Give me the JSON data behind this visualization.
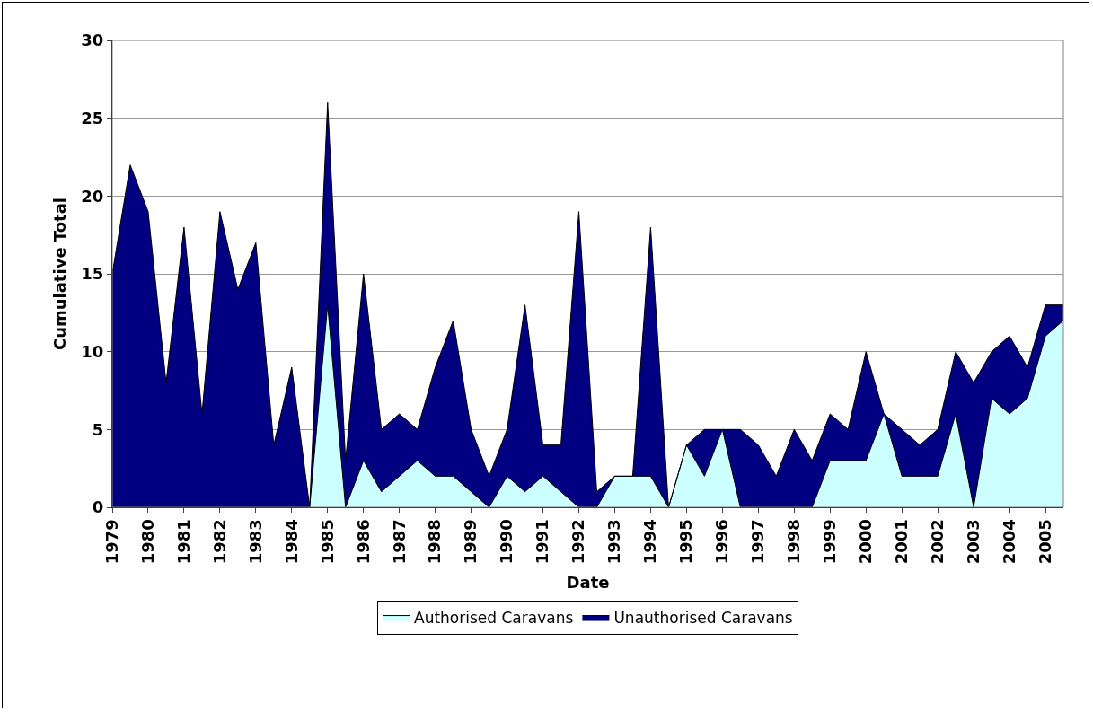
{
  "chart_data": {
    "type": "area",
    "stacked": true,
    "xlabel": "Date",
    "ylabel": "Cumulative Total",
    "categories": [
      "1979",
      null,
      "1980",
      null,
      "1981",
      null,
      "1982",
      null,
      "1983",
      null,
      "1984",
      null,
      "1985",
      null,
      "1986",
      null,
      "1987",
      null,
      "1988",
      null,
      "1989",
      null,
      "1990",
      null,
      "1991",
      null,
      "1992",
      null,
      "1993",
      null,
      "1994",
      null,
      "1995",
      null,
      "1996",
      null,
      "1997",
      null,
      "1998",
      null,
      "1999",
      null,
      "2000",
      null,
      "2001",
      null,
      "2002",
      null,
      "2003",
      null,
      "2004",
      null,
      "2005",
      null
    ],
    "series": [
      {
        "name": "Authorised Caravans",
        "color": "#ccffff",
        "values": [
          0,
          0,
          0,
          0,
          0,
          0,
          0,
          0,
          0,
          0,
          0,
          0,
          13,
          0,
          3,
          1,
          2,
          3,
          2,
          2,
          1,
          0,
          2,
          1,
          2,
          1,
          0,
          0,
          2,
          2,
          2,
          0,
          4,
          2,
          5,
          0,
          0,
          0,
          0,
          0,
          3,
          3,
          3,
          6,
          2,
          2,
          2,
          6,
          0,
          7,
          6,
          7,
          11,
          12
        ]
      },
      {
        "name": "Unauthorised Caravans",
        "color": "#000080",
        "values": [
          15,
          22,
          19,
          8,
          18,
          6,
          19,
          14,
          17,
          4,
          9,
          0,
          13,
          3,
          12,
          4,
          4,
          2,
          7,
          10,
          4,
          2,
          3,
          12,
          2,
          3,
          19,
          1,
          0,
          0,
          16,
          0,
          0,
          3,
          0,
          5,
          4,
          2,
          5,
          3,
          3,
          2,
          7,
          0,
          3,
          2,
          3,
          4,
          8,
          3,
          5,
          2,
          2,
          1
        ]
      }
    ],
    "ylim": [
      0,
      30
    ],
    "yticks": [
      0,
      5,
      10,
      15,
      20,
      25,
      30
    ],
    "grid": "y",
    "legend": "bottom",
    "marker": "none",
    "line_style": "solid"
  }
}
